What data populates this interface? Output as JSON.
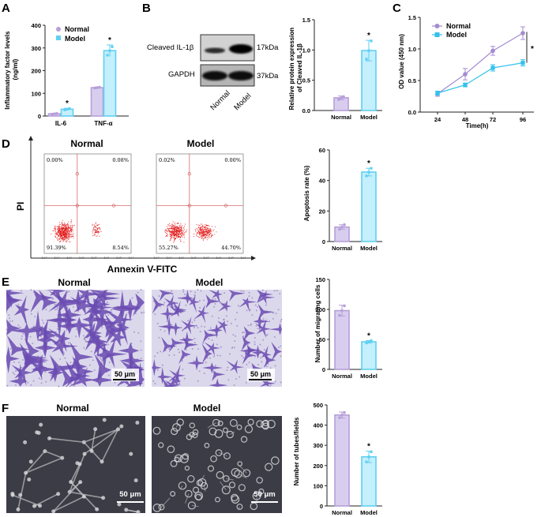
{
  "colors": {
    "normal": "#b79fd9",
    "model": "#5fd0f2",
    "normal_fill": "#d8cdee",
    "model_fill": "#c4effc",
    "line_normal": "#a48bd0",
    "line_model": "#33c1ee",
    "axis": "#222222",
    "flow_dot": "#e21b1b",
    "flow_line": "#d96b6b",
    "stain_bg": "#dcd8ec",
    "stain_cell": "#6a4bb2",
    "phase_bg": "#3c3c46"
  },
  "panels": {
    "A": "A",
    "B": "B",
    "C": "C",
    "D": "D",
    "E": "E",
    "F": "F"
  },
  "star": "*",
  "legend": {
    "normal": "Normal",
    "model": "Model"
  },
  "panelA": {
    "chart_data": {
      "type": "bar",
      "title": "",
      "ylabel": "Inflammatory factor levels\n(ng/ml)",
      "ylim": [
        0,
        400
      ],
      "yticks": [
        "0",
        "100",
        "200",
        "300",
        "400"
      ],
      "categories": [
        "IL-6",
        "TNF-α"
      ],
      "series": [
        {
          "name": "Normal",
          "values": [
            10,
            125
          ],
          "errors": [
            1,
            3
          ],
          "points": [
            [
              8,
              10,
              11
            ],
            [
              123,
              125,
              127
            ]
          ]
        },
        {
          "name": "Model",
          "values": [
            30,
            288
          ],
          "errors": [
            4,
            25
          ],
          "points": [
            [
              27,
              30,
              33
            ],
            [
              268,
              288,
              305
            ]
          ]
        }
      ],
      "significance": [
        "*",
        "*"
      ]
    }
  },
  "panelB": {
    "blot_labels": [
      "Cleaved IL-1β",
      "GAPDH"
    ],
    "kda": [
      "17kDa",
      "37kDa"
    ],
    "lane_labels": [
      "Normal",
      "Model"
    ],
    "chart_data": {
      "type": "bar",
      "ylabel": "Relative protein expression\nof Cleaved IL-1β",
      "ylim": [
        0,
        1.5
      ],
      "yticks": [
        "0.0",
        "0.5",
        "1.0",
        "1.5"
      ],
      "categories": [
        "Normal",
        "Model"
      ],
      "values": [
        0.21,
        0.99
      ],
      "errors": [
        0.03,
        0.17
      ],
      "points": [
        [
          0.18,
          0.21,
          0.23
        ],
        [
          0.85,
          0.99,
          1.15
        ]
      ],
      "significance": [
        null,
        "*"
      ]
    }
  },
  "panelC": {
    "chart_data": {
      "type": "line",
      "xlabel": "Time(h)",
      "ylabel": "OD value (450 nm)",
      "x": [
        24,
        48,
        72,
        96
      ],
      "xticks": [
        "24",
        "48",
        "72",
        "96"
      ],
      "ylim": [
        0,
        1.5
      ],
      "yticks": [
        "0.0",
        "0.5",
        "1.0",
        "1.5"
      ],
      "series": [
        {
          "name": "Normal",
          "values": [
            0.29,
            0.6,
            0.97,
            1.25
          ],
          "errors": [
            0.04,
            0.09,
            0.07,
            0.1
          ]
        },
        {
          "name": "Model",
          "values": [
            0.3,
            0.43,
            0.7,
            0.78
          ],
          "errors": [
            0.03,
            0.03,
            0.05,
            0.05
          ]
        }
      ],
      "significance": "*"
    }
  },
  "panelD": {
    "titles": [
      "Normal",
      "Model"
    ],
    "ylabel": "PI",
    "xlabel": "Annexin V-FITC",
    "quadrants": [
      {
        "ul": "0.00%",
        "ur": "0.08%",
        "ll": "91.39%",
        "lr": "8.54%"
      },
      {
        "ul": "0.02%",
        "ur": "0.00%",
        "ll": "55.27%",
        "lr": "44.70%"
      }
    ],
    "axis_ticks": [
      "10⁰",
      "10¹",
      "10²",
      "10³",
      "10⁴",
      "10⁵",
      "10⁶",
      "10⁷"
    ],
    "chart_data": {
      "type": "bar",
      "ylabel": "Apoptosis rate (%)",
      "ylim": [
        0,
        60
      ],
      "yticks": [
        "0",
        "20",
        "40",
        "60"
      ],
      "categories": [
        "Normal",
        "Model"
      ],
      "values": [
        9.5,
        45.5
      ],
      "errors": [
        1.5,
        2.5
      ],
      "points": [
        [
          8,
          9.5,
          11
        ],
        [
          43,
          45.5,
          48
        ]
      ],
      "significance": [
        null,
        "*"
      ]
    }
  },
  "panelE": {
    "titles": [
      "Normal",
      "Model"
    ],
    "scalebar": "50 μm",
    "chart_data": {
      "type": "bar",
      "ylabel": "Number of migrating cells",
      "ylim": [
        0,
        150
      ],
      "yticks": [
        "0",
        "50",
        "100",
        "150"
      ],
      "categories": [
        "Normal",
        "Model"
      ],
      "values": [
        98,
        46
      ],
      "errors": [
        9,
        2
      ],
      "points": [
        [
          90,
          98,
          106
        ],
        [
          44,
          46,
          48
        ]
      ],
      "significance": [
        null,
        "*"
      ]
    }
  },
  "panelF": {
    "titles": [
      "Normal",
      "Model"
    ],
    "scalebar": "50 μm",
    "chart_data": {
      "type": "bar",
      "ylabel": "Number of tubes/fields",
      "ylim": [
        0,
        500
      ],
      "yticks": [
        "0",
        "100",
        "200",
        "300",
        "400",
        "500"
      ],
      "categories": [
        "Normal",
        "Model"
      ],
      "values": [
        450,
        243
      ],
      "errors": [
        15,
        28
      ],
      "points": [
        [
          437,
          450,
          462
        ],
        [
          218,
          243,
          268
        ]
      ],
      "significance": [
        null,
        "*"
      ]
    }
  }
}
